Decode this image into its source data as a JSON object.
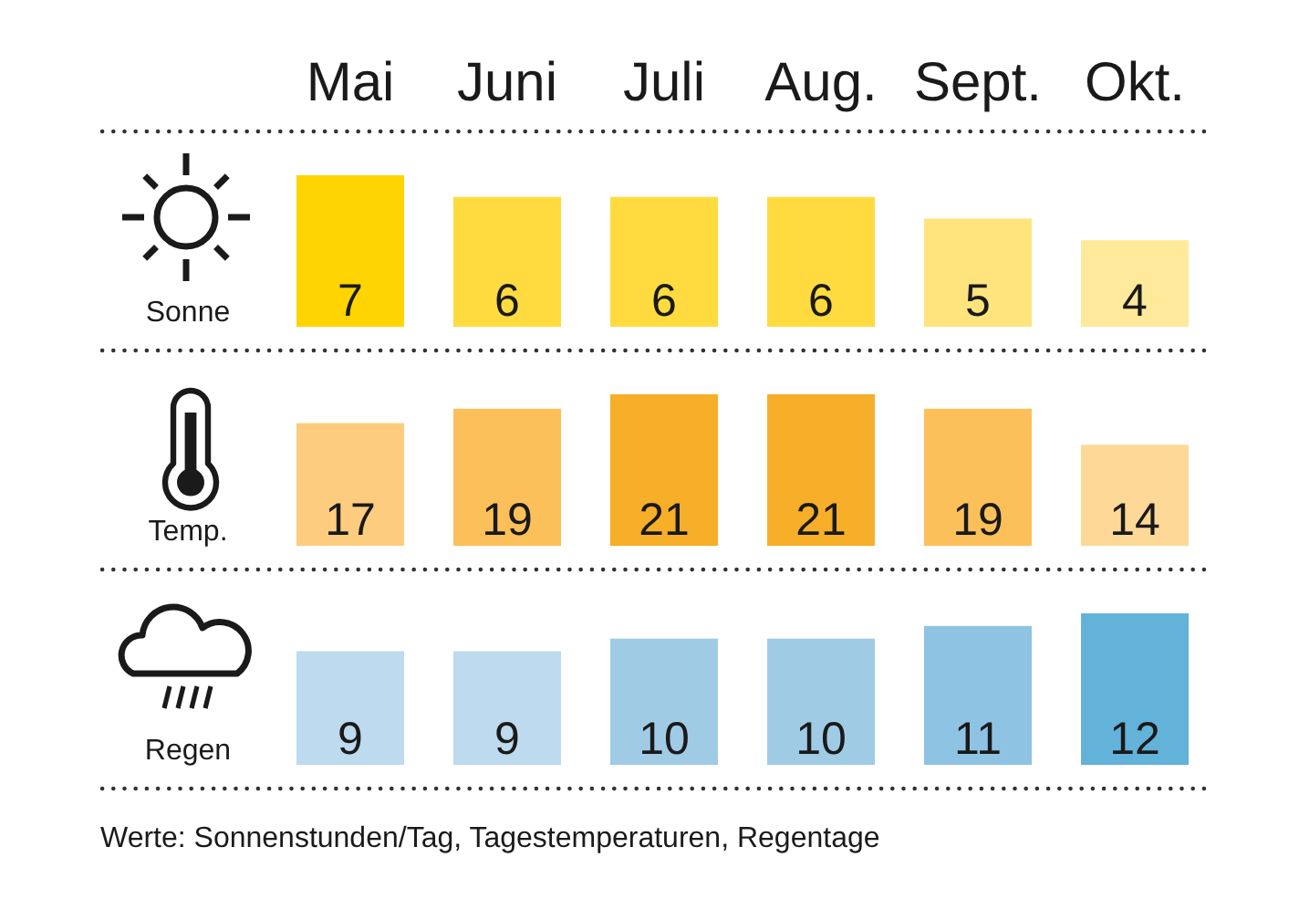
{
  "chart_data": [
    {
      "type": "bar",
      "categories": [
        "Mai",
        "Juni",
        "Juli",
        "Aug.",
        "Sept.",
        "Okt."
      ],
      "values": [
        7,
        6,
        6,
        6,
        5,
        4
      ],
      "colors": [
        "#ffd400",
        "#ffdb3f",
        "#ffdb3f",
        "#ffdb3f",
        "#ffe47e",
        "#ffe99b"
      ],
      "ylabel": "Sonne",
      "data_labels": true,
      "tick_labels": "x"
    },
    {
      "type": "bar",
      "categories": [
        null,
        null,
        null,
        null,
        null,
        null
      ],
      "values": [
        17,
        19,
        21,
        21,
        19,
        14
      ],
      "colors": [
        "#fdcc7f",
        "#fcc05a",
        "#f7ae28",
        "#f7ae28",
        "#fcc05a",
        "#fed897"
      ],
      "ylabel": "Temp.",
      "data_labels": true
    },
    {
      "type": "bar",
      "categories": [
        null,
        null,
        null,
        null,
        null,
        null
      ],
      "values": [
        9,
        9,
        10,
        10,
        11,
        12
      ],
      "colors": [
        "#bddaee",
        "#bddaee",
        "#9fcbe5",
        "#9fcbe5",
        "#8ec3e3",
        "#62b2da"
      ],
      "ylabel": "Regen",
      "data_labels": true,
      "annotations": [
        "Werte: Sonnenstunden/Tag, Tagestemperaturen, Regentage"
      ]
    }
  ]
}
